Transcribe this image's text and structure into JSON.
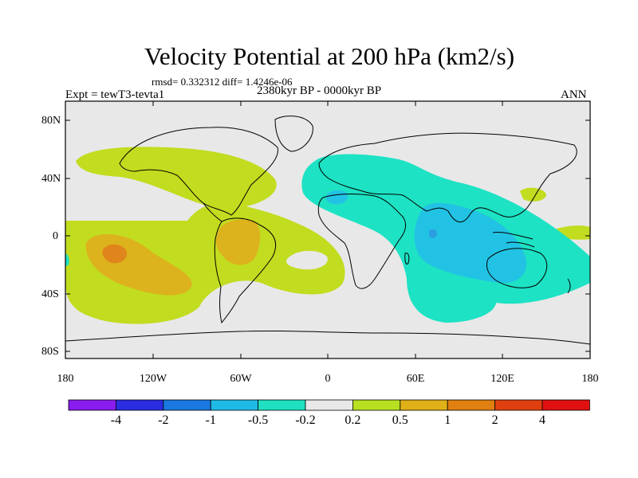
{
  "title": "Velocity Potential at 200 hPa (km2/s)",
  "stats": "rmsd= 0.332312 diff= 1.4246e-06",
  "experiment": "Expt = tewT3-tevta1",
  "period": "2380kyr BP - 0000kyr BP",
  "season": "ANN",
  "lat_labels": [
    "80N",
    "40N",
    "0",
    "40S",
    "80S"
  ],
  "lon_labels": [
    "180",
    "120W",
    "60W",
    "0",
    "60E",
    "120E",
    "180"
  ],
  "colorbar": {
    "labels": [
      "-4",
      "-2",
      "-1",
      "-0.5",
      "-0.2",
      "0.2",
      "0.5",
      "1",
      "2",
      "4"
    ],
    "colors": [
      "#8a1cf0",
      "#2a2de0",
      "#1a78e0",
      "#1fbbe6",
      "#1fe0c0",
      "#e8e8e8",
      "#b8e020",
      "#e0b018",
      "#e08010",
      "#e04010",
      "#e01010"
    ]
  },
  "contour_colors": {
    "neutral": "#e8e8e8",
    "pos_weak": "#c2dc1f",
    "pos_mid": "#dcb21d",
    "pos_strong": "#e0841c",
    "pos_peak": "#df5a19",
    "neg_weak": "#1de2c4",
    "neg_mid": "#22c2e4",
    "neg_strong": "#2a9ee0"
  }
}
